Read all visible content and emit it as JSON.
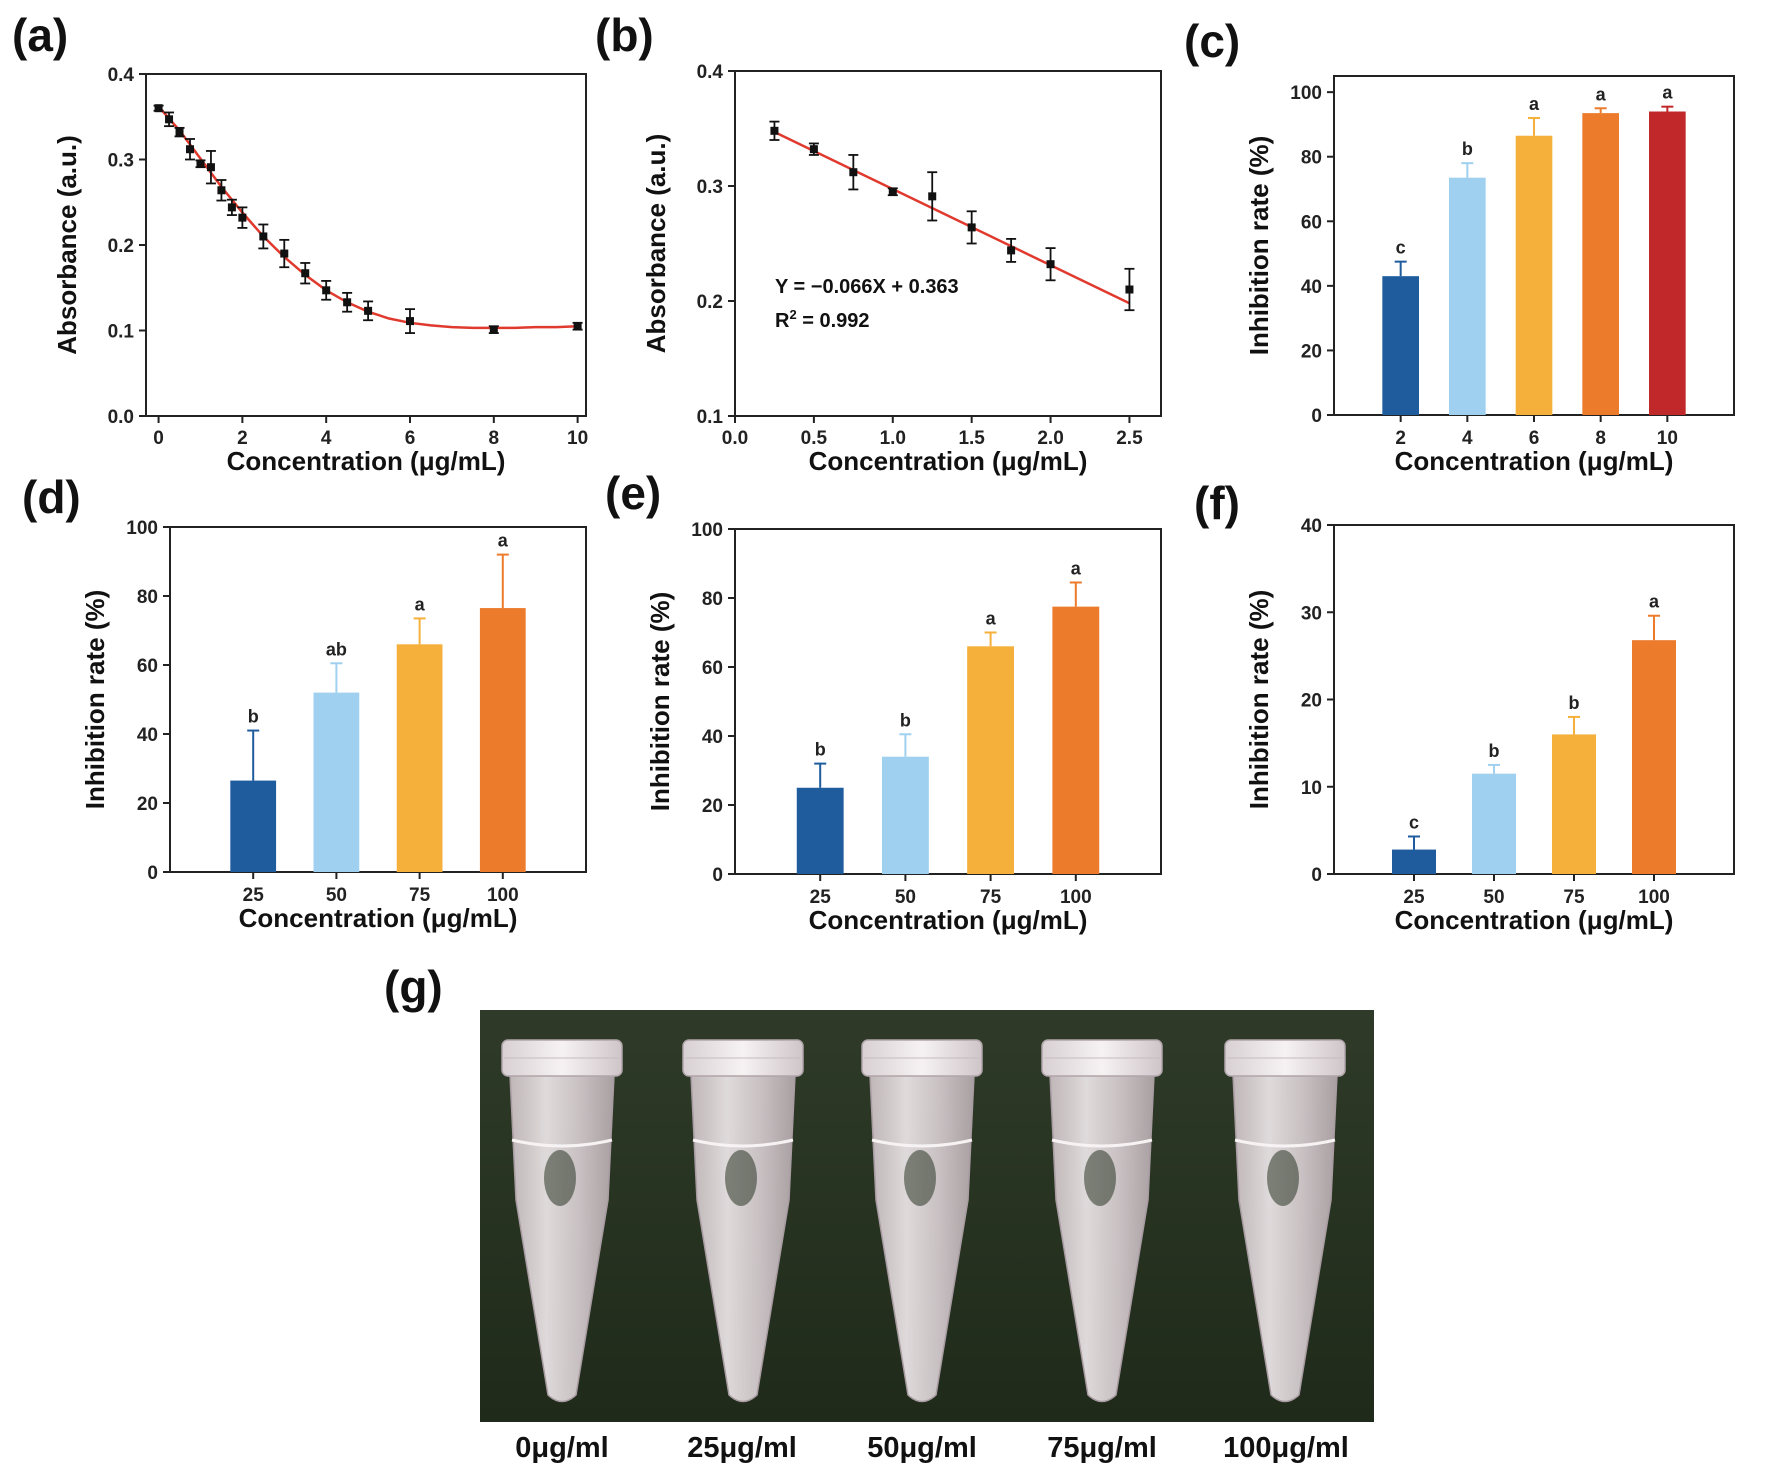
{
  "panel_labels": {
    "a": "(a)",
    "b": "(b)",
    "c": "(c)",
    "d": "(d)",
    "e": "(e)",
    "f": "(f)",
    "g": "(g)"
  },
  "colors": {
    "bar_colors": [
      "#1f5c9e",
      "#9fd0f0",
      "#f5b03b",
      "#ec7b2c",
      "#c0282a"
    ],
    "fit_line": "#e03a2e",
    "photo_background": "#27331f"
  },
  "chart_data": [
    {
      "id": "a",
      "type": "scatter",
      "xlabel": "Concentration (μg/mL)",
      "ylabel": "Absorbance (a.u.)",
      "xlim": [
        -0.3,
        10.2
      ],
      "ylim": [
        0,
        0.4
      ],
      "xticks": [
        0,
        2,
        4,
        6,
        8,
        10
      ],
      "yticks": [
        0.0,
        0.1,
        0.2,
        0.3,
        0.4
      ],
      "ytick_labels": [
        "0.0",
        "0.1",
        "0.2",
        "0.3",
        "0.4"
      ],
      "series": [
        {
          "name": "Absorbance",
          "x": [
            0,
            0.25,
            0.5,
            0.75,
            1.0,
            1.25,
            1.5,
            1.75,
            2.0,
            2.5,
            3.0,
            3.5,
            4.0,
            4.5,
            5.0,
            6.0,
            8.0,
            10.0
          ],
          "y": [
            0.36,
            0.347,
            0.332,
            0.312,
            0.295,
            0.291,
            0.264,
            0.244,
            0.232,
            0.21,
            0.19,
            0.167,
            0.147,
            0.133,
            0.123,
            0.111,
            0.101,
            0.105
          ],
          "err": [
            0.003,
            0.008,
            0.005,
            0.012,
            0.004,
            0.019,
            0.012,
            0.009,
            0.012,
            0.014,
            0.016,
            0.012,
            0.011,
            0.011,
            0.011,
            0.014,
            0.004,
            0.004
          ]
        }
      ],
      "fit_curve": {
        "x": [
          0,
          0.5,
          1,
          1.5,
          2,
          2.5,
          3,
          3.5,
          4,
          4.5,
          5,
          5.5,
          6,
          6.5,
          7,
          7.5,
          8,
          8.5,
          9,
          9.5,
          10
        ],
        "y": [
          0.362,
          0.334,
          0.301,
          0.268,
          0.238,
          0.21,
          0.186,
          0.165,
          0.147,
          0.133,
          0.122,
          0.114,
          0.109,
          0.106,
          0.104,
          0.103,
          0.103,
          0.103,
          0.104,
          0.104,
          0.105
        ]
      }
    },
    {
      "id": "b",
      "type": "scatter",
      "xlabel": "Concentration (μg/mL)",
      "ylabel": "Absorbance (a.u.)",
      "xlim": [
        0,
        2.7
      ],
      "ylim": [
        0.1,
        0.4
      ],
      "xticks": [
        0.0,
        0.5,
        1.0,
        1.5,
        2.0,
        2.5
      ],
      "xtick_labels": [
        "0.0",
        "0.5",
        "1.0",
        "1.5",
        "2.0",
        "2.5"
      ],
      "yticks": [
        0.1,
        0.2,
        0.3,
        0.4
      ],
      "ytick_labels": [
        "0.1",
        "0.2",
        "0.3",
        "0.4"
      ],
      "series": [
        {
          "name": "Absorbance",
          "x": [
            0.25,
            0.5,
            0.75,
            1.0,
            1.25,
            1.5,
            1.75,
            2.0,
            2.5
          ],
          "y": [
            0.348,
            0.332,
            0.312,
            0.295,
            0.291,
            0.264,
            0.244,
            0.232,
            0.21
          ],
          "err": [
            0.008,
            0.005,
            0.015,
            0.003,
            0.021,
            0.014,
            0.01,
            0.014,
            0.018
          ]
        }
      ],
      "fit_line": {
        "x": [
          0.25,
          2.5
        ],
        "y": [
          0.347,
          0.198
        ]
      },
      "equation": "Y = −0.066X + 0.363",
      "r2_prefix": "R",
      "r2_sup": "2",
      "r2_suffix": " = 0.992"
    },
    {
      "id": "c",
      "type": "bar",
      "xlabel": "Concentration (μg/mL)",
      "ylabel": "Inhibition rate (%)",
      "ylim": [
        0,
        105
      ],
      "yticks": [
        0,
        20,
        40,
        60,
        80,
        100
      ],
      "categories": [
        "2",
        "4",
        "6",
        "8",
        "10"
      ],
      "values": [
        43.0,
        73.5,
        86.5,
        93.5,
        94.0
      ],
      "errors": [
        4.5,
        4.5,
        5.5,
        1.5,
        1.5
      ],
      "letters": [
        "c",
        "b",
        "a",
        "a",
        "a"
      ]
    },
    {
      "id": "d",
      "type": "bar",
      "xlabel": "Concentration (μg/mL)",
      "ylabel": "Inhibition rate (%)",
      "ylim": [
        0,
        100
      ],
      "yticks": [
        0,
        20,
        40,
        60,
        80,
        100
      ],
      "categories": [
        "25",
        "50",
        "75",
        "100"
      ],
      "values": [
        26.5,
        52.0,
        66.0,
        76.5
      ],
      "errors": [
        14.5,
        8.5,
        7.5,
        15.5
      ],
      "letters": [
        "b",
        "ab",
        "a",
        "a"
      ]
    },
    {
      "id": "e",
      "type": "bar",
      "xlabel": "Concentration (μg/mL)",
      "ylabel": "Inhibition rate (%)",
      "ylim": [
        0,
        100
      ],
      "yticks": [
        0,
        20,
        40,
        60,
        80,
        100
      ],
      "categories": [
        "25",
        "50",
        "75",
        "100"
      ],
      "values": [
        25.0,
        34.0,
        66.0,
        77.5
      ],
      "errors": [
        7.0,
        6.5,
        4.0,
        7.0
      ],
      "letters": [
        "b",
        "b",
        "a",
        "a"
      ]
    },
    {
      "id": "f",
      "type": "bar",
      "xlabel": "Concentration (μg/mL)",
      "ylabel": "Inhibition rate (%)",
      "ylim": [
        0,
        40
      ],
      "yticks": [
        0,
        10,
        20,
        30,
        40
      ],
      "categories": [
        "25",
        "50",
        "75",
        "100"
      ],
      "values": [
        2.8,
        11.5,
        16.0,
        26.8
      ],
      "errors": [
        1.5,
        1.0,
        2.0,
        2.8
      ],
      "letters": [
        "c",
        "b",
        "b",
        "a"
      ]
    }
  ],
  "photo": {
    "description_labels": [
      "0μg/ml",
      "25μg/ml",
      "50μg/ml",
      "75μg/ml",
      "100μg/ml"
    ]
  }
}
